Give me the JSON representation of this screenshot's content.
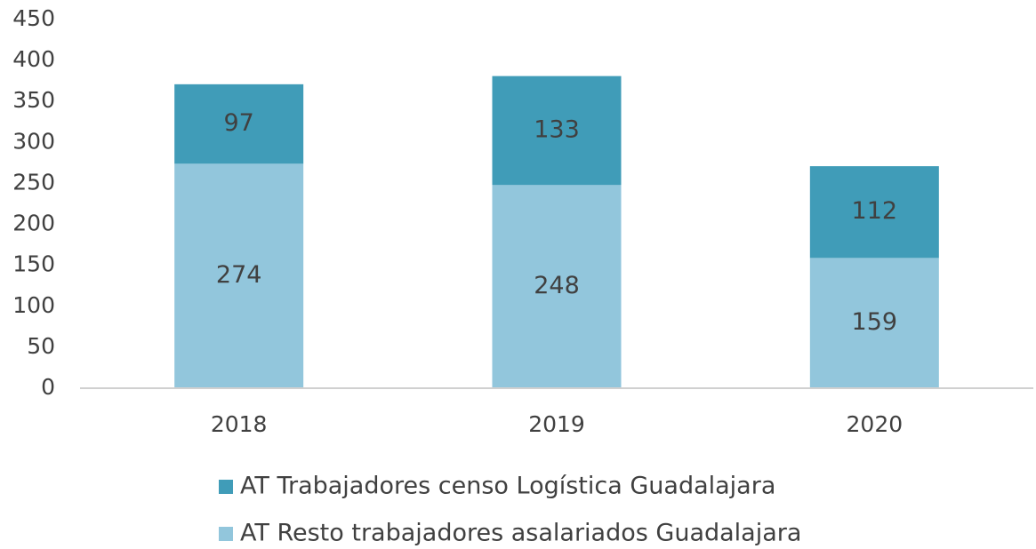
{
  "chart_data": {
    "type": "bar",
    "stacked": true,
    "categories": [
      "2018",
      "2019",
      "2020"
    ],
    "series": [
      {
        "name": "AT Resto trabajadores asalariados Guadalajara",
        "color": "#92c6dc",
        "values": [
          274,
          248,
          159
        ]
      },
      {
        "name": "AT Trabajadores censo Logística Guadalajara",
        "color": "#409cb8",
        "values": [
          97,
          133,
          112
        ]
      }
    ],
    "ylim": [
      0,
      450
    ],
    "yticks": [
      0,
      50,
      100,
      150,
      200,
      250,
      300,
      350,
      400,
      450
    ],
    "grid": false,
    "legend": "bottom"
  }
}
